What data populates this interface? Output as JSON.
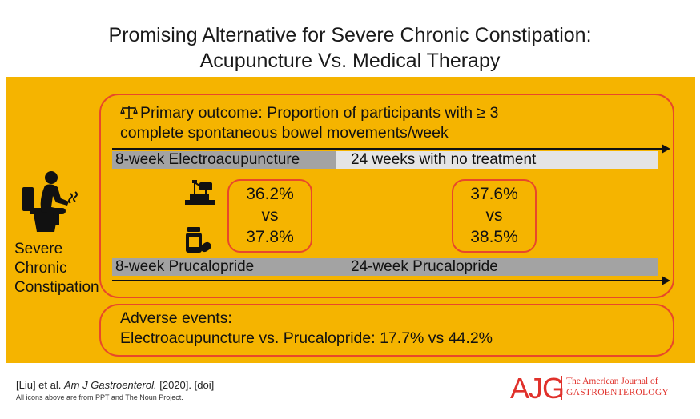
{
  "title": {
    "line1": "Promising Alternative for Severe Chronic Constipation:",
    "line2": "Acupuncture Vs. Medical Therapy"
  },
  "colors": {
    "panel": "#f5b400",
    "outline": "#e8482a",
    "bar_dark": "#a3a3a3",
    "bar_light": "#e4e4e4",
    "logo": "#e0312b"
  },
  "condition_label": [
    "Severe",
    "Chronic",
    "Constipation"
  ],
  "icons": {
    "condition": "person-on-toilet-icon",
    "outcome": "balance-scale-icon",
    "electroacupuncture": "acupuncture-device-icon",
    "prucalopride": "pill-bottle-icon"
  },
  "primary_outcome": {
    "line1": "Primary outcome: Proportion of participants with ≥ 3",
    "line2": "complete spontaneous bowel movements/week"
  },
  "timeline": {
    "electroacupuncture": {
      "phase1": "8-week Electroacupuncture",
      "phase2": "24 weeks with no treatment"
    },
    "prucalopride": {
      "phase1": "8-week Prucalopride",
      "phase2": "24-week Prucalopride"
    }
  },
  "results": {
    "week8": {
      "electroacupuncture": "36.2%",
      "vs": "vs",
      "prucalopride": "37.8%"
    },
    "week24": {
      "electroacupuncture": "37.6%",
      "vs": "vs",
      "prucalopride": "38.5%"
    }
  },
  "adverse_events": {
    "heading": "Adverse events:",
    "detail": "Electroacupuncture vs. Prucalopride: 17.7% vs 44.2%"
  },
  "citation": {
    "authors": "[Liu] et al.",
    "journal": "Am J Gastroenterol.",
    "year": "[2020].",
    "doi": "[doi]",
    "icons_note": "All icons above are from PPT and The Noun Project."
  },
  "logo": {
    "letters": "AJG",
    "line1": "The American Journal of",
    "line2": "GASTROENTEROLOGY"
  }
}
